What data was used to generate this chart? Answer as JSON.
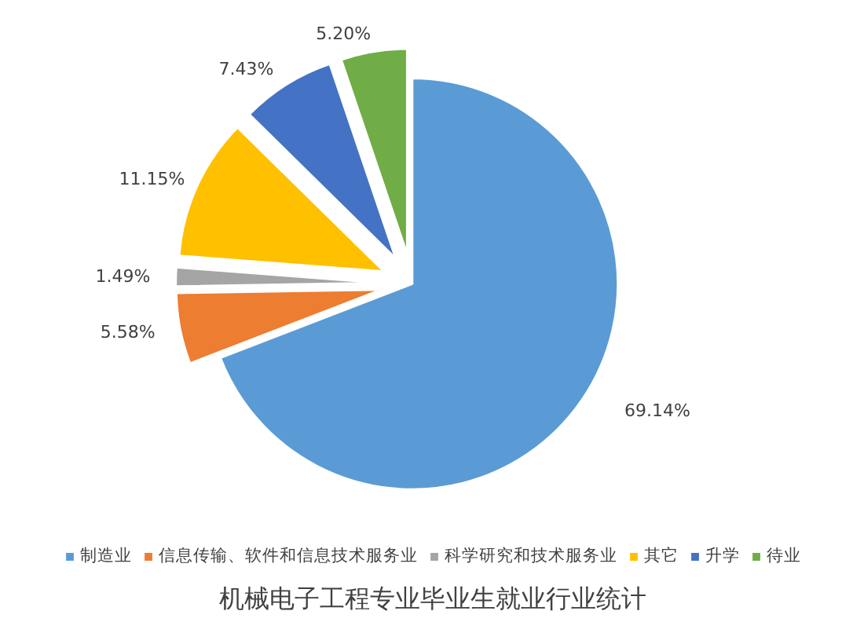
{
  "chart_data": {
    "type": "pie",
    "title": "机械电子工程专业毕业生就业行业统计",
    "categories": [
      "制造业",
      "信息传输、软件和信息技术服务业",
      "科学研究和技术服务业",
      "其它",
      "升学",
      "待业"
    ],
    "values": [
      69.14,
      5.58,
      1.49,
      11.15,
      7.43,
      5.2
    ],
    "value_labels": [
      "69.14%",
      "5.58%",
      "1.49%",
      "11.15%",
      "7.43%",
      "5.20%"
    ],
    "colors": [
      "#5b9bd5",
      "#ed7d31",
      "#a5a5a5",
      "#ffc000",
      "#4472c4",
      "#70ad47"
    ],
    "legend": "bottom"
  }
}
